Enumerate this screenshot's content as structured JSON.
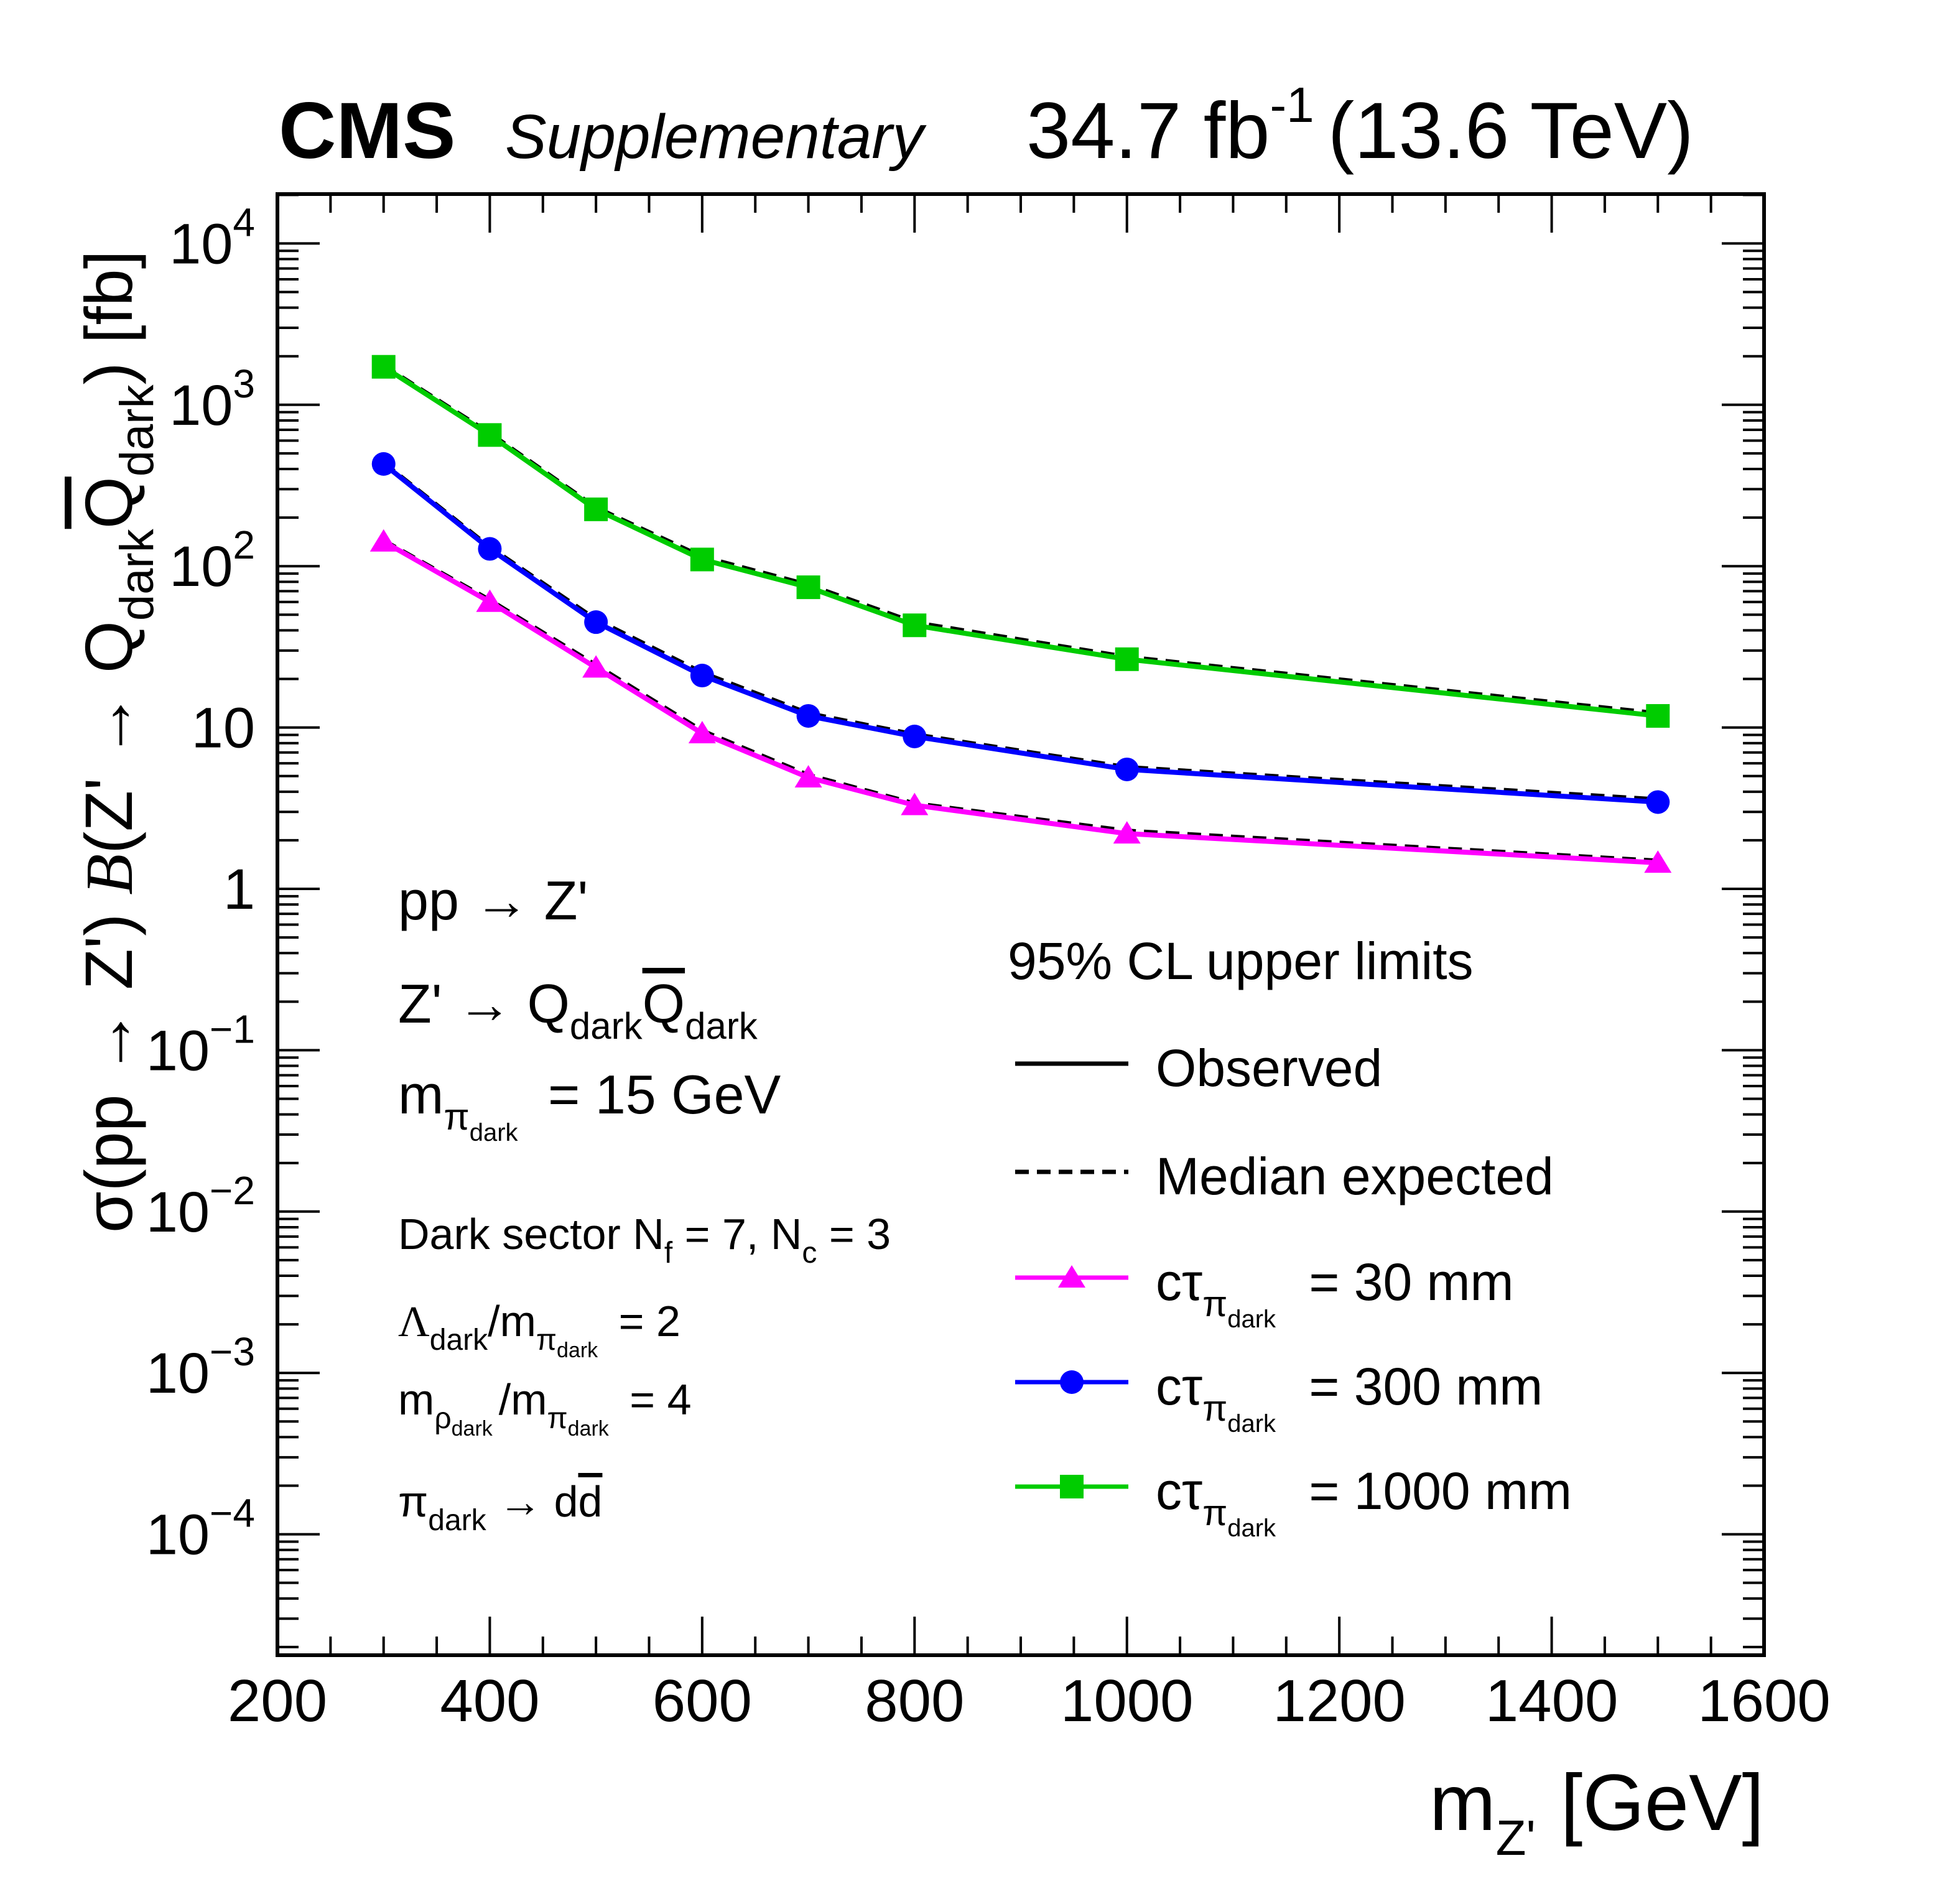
{
  "header": {
    "experiment": "CMS",
    "qualifier": "Supplementary",
    "lumi_value": "34.7 fb",
    "lumi_exp": "-1",
    "energy": "(13.6 TeV)"
  },
  "axes": {
    "x_label": "m",
    "x_label_sub": "Z'",
    "x_label_unit": "[GeV]",
    "y_label": {
      "part1": "σ(pp → Z') ",
      "part2": "B",
      "part3": "(Z' → Q",
      "sub1": "dark",
      "q2": "Q",
      "sub2": "dark",
      "part4": ") [fb]"
    },
    "x_ticks": [
      "200",
      "400",
      "600",
      "800",
      "1000",
      "1200",
      "1400",
      "1600"
    ],
    "y_ticks": [
      {
        "base": "10",
        "exp": "4",
        "value": 10000
      },
      {
        "base": "10",
        "exp": "3",
        "value": 1000
      },
      {
        "base": "10",
        "exp": "2",
        "value": 100
      },
      {
        "base": "10",
        "exp": "",
        "value": 10
      },
      {
        "base": "1",
        "exp": "",
        "value": 1
      },
      {
        "base": "10",
        "exp": "−1",
        "value": 0.1
      },
      {
        "base": "10",
        "exp": "−2",
        "value": 0.01
      },
      {
        "base": "10",
        "exp": "−3",
        "value": 0.001
      },
      {
        "base": "10",
        "exp": "−4",
        "value": 0.0001
      }
    ]
  },
  "annotations": {
    "process1": "pp → Z'",
    "process2_a": "Z' → Q",
    "process2_sub1": "dark",
    "process2_q": "Q",
    "process2_sub2": "dark",
    "mass_m": "m",
    "mass_sub_pi": "π",
    "mass_sub_dark": "dark",
    "mass_val": " = 15 GeV",
    "sector_a": "Dark sector N",
    "sector_f": "f",
    "sector_b": " = 7,  N",
    "sector_c": "c",
    "sector_d": " = 3",
    "lambda_a": "Λ",
    "lambda_sub": "dark",
    "lambda_b": "/m",
    "lambda_pi": "π",
    "lambda_dark": "dark",
    "lambda_val": " = 2",
    "rho_a": "m",
    "rho_sub": "ρ",
    "rho_dark": "dark",
    "rho_b": "/m",
    "rho_pi": "π",
    "rho_pidark": "dark",
    "rho_val": " = 4",
    "decay_a": "π",
    "decay_sub": "dark",
    "decay_b": " → d",
    "decay_dbar": "d"
  },
  "legend": {
    "title": "95% CL upper limits",
    "observed": "Observed",
    "expected": "Median expected",
    "entries": [
      {
        "prefix": "cτ",
        "sub": "π",
        "subsub": "dark",
        "value": " = 30 mm"
      },
      {
        "prefix": "cτ",
        "sub": "π",
        "subsub": "dark",
        "value": " = 300 mm"
      },
      {
        "prefix": "cτ",
        "sub": "π",
        "subsub": "dark",
        "value": " = 1000 mm"
      }
    ]
  },
  "chart_data": {
    "type": "line",
    "title": "",
    "xlabel": "m_Z' [GeV]",
    "ylabel": "σ(pp → Z') B(Z' → Q_dark Q̄_dark) [fb]",
    "xlim": [
      200,
      1600
    ],
    "ylim": [
      3e-05,
      20000
    ],
    "y_scale": "log",
    "grid": false,
    "legend_position": "bottom-right",
    "x": [
      300,
      400,
      500,
      600,
      700,
      800,
      1000,
      1500
    ],
    "series": [
      {
        "name": "cτ_π_dark = 30 mm",
        "color": "#ff00ff",
        "marker": "triangle",
        "observed": [
          142,
          60,
          23.5,
          9.2,
          4.9,
          3.3,
          2.2,
          1.45
        ],
        "expected": [
          145,
          62,
          24.5,
          9.6,
          5.1,
          3.4,
          2.3,
          1.5
        ]
      },
      {
        "name": "cτ_π_dark = 300 mm",
        "color": "#0000ff",
        "marker": "circle",
        "observed": [
          430,
          128,
          45,
          21,
          11.8,
          8.8,
          5.5,
          3.45
        ],
        "expected": [
          440,
          132,
          47,
          22,
          12.3,
          9.1,
          5.7,
          3.6
        ]
      },
      {
        "name": "cτ_π_dark = 1000 mm",
        "color": "#00cc00",
        "marker": "square",
        "observed": [
          1720,
          650,
          225,
          110,
          74,
          43,
          26.5,
          11.8
        ],
        "expected": [
          1760,
          670,
          232,
          115,
          77,
          45,
          27.5,
          12.3
        ]
      }
    ]
  }
}
